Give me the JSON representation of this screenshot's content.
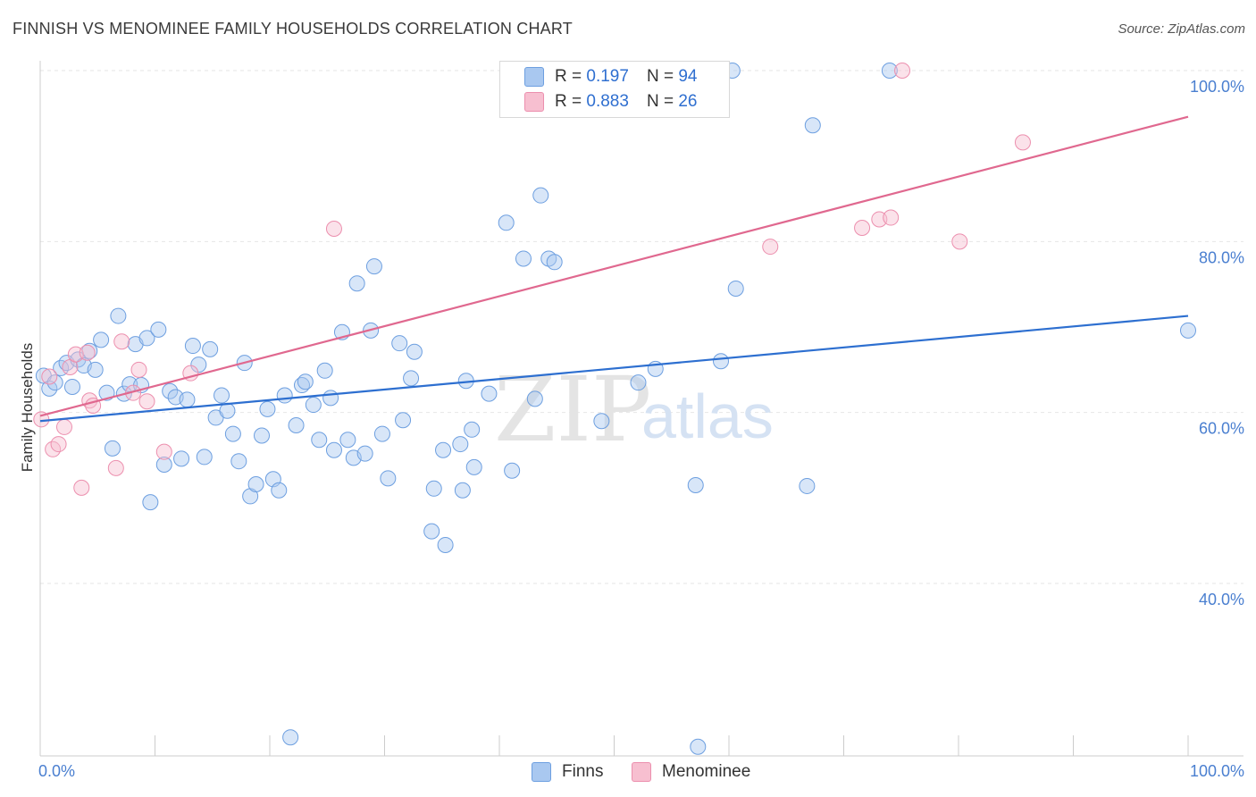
{
  "title": "FINNISH VS MENOMINEE FAMILY HOUSEHOLDS CORRELATION CHART",
  "source": "Source: ZipAtlas.com",
  "watermark": {
    "zip": "ZIP",
    "atlas": "atlas"
  },
  "legend": {
    "finns": {
      "r_label": "R = ",
      "r_value": "0.197",
      "n_label": "N = ",
      "n_value": "94"
    },
    "menominee": {
      "r_label": "R = ",
      "r_value": "0.883",
      "n_label": "N = ",
      "n_value": "26"
    }
  },
  "colors": {
    "finns_fill": "#a9c8f0",
    "finns_stroke": "#6d9fe0",
    "finns_line": "#2d6fd0",
    "menominee_fill": "#f7bfd0",
    "menominee_stroke": "#ec8fae",
    "menominee_line": "#e0688f",
    "grid": "#e6e6e6",
    "axis": "#cccccc",
    "tick_text": "#4a7fd0"
  },
  "chart_data": {
    "type": "scatter",
    "title": "FINNISH VS MENOMINEE FAMILY HOUSEHOLDS CORRELATION CHART",
    "xlabel": "",
    "ylabel": "Family Households",
    "xlim": [
      0,
      100
    ],
    "ylim": [
      20,
      104
    ],
    "x_tick_labels": [
      "0.0%",
      "100.0%"
    ],
    "y_ticks": [
      40,
      60,
      80,
      100
    ],
    "y_tick_labels": [
      "40.0%",
      "60.0%",
      "80.0%",
      "100.0%"
    ],
    "series": [
      {
        "name": "Finns",
        "r": 0.197,
        "n": 94,
        "trend": {
          "x": [
            0,
            100
          ],
          "y": [
            59.0,
            71.3
          ]
        },
        "points": [
          [
            0.3,
            64.3
          ],
          [
            0.8,
            62.8
          ],
          [
            1.3,
            63.5
          ],
          [
            1.8,
            65.2
          ],
          [
            2.3,
            65.8
          ],
          [
            2.8,
            63.0
          ],
          [
            3.3,
            66.2
          ],
          [
            3.8,
            65.5
          ],
          [
            4.3,
            67.2
          ],
          [
            4.8,
            65.0
          ],
          [
            5.3,
            68.5
          ],
          [
            5.8,
            62.3
          ],
          [
            6.3,
            55.8
          ],
          [
            6.8,
            71.3
          ],
          [
            7.3,
            62.2
          ],
          [
            7.8,
            63.3
          ],
          [
            8.3,
            68.0
          ],
          [
            8.8,
            63.2
          ],
          [
            9.3,
            68.7
          ],
          [
            9.6,
            49.5
          ],
          [
            10.3,
            69.7
          ],
          [
            10.8,
            53.9
          ],
          [
            11.3,
            62.5
          ],
          [
            11.8,
            61.8
          ],
          [
            12.3,
            54.6
          ],
          [
            12.8,
            61.5
          ],
          [
            13.3,
            67.8
          ],
          [
            13.8,
            65.6
          ],
          [
            14.3,
            54.8
          ],
          [
            14.8,
            67.4
          ],
          [
            15.3,
            59.4
          ],
          [
            15.8,
            62.0
          ],
          [
            16.3,
            60.2
          ],
          [
            16.8,
            57.5
          ],
          [
            17.3,
            54.3
          ],
          [
            17.8,
            65.8
          ],
          [
            18.3,
            50.2
          ],
          [
            18.8,
            51.6
          ],
          [
            19.3,
            57.3
          ],
          [
            19.8,
            60.4
          ],
          [
            20.3,
            52.2
          ],
          [
            20.8,
            50.9
          ],
          [
            21.3,
            62.0
          ],
          [
            21.8,
            22.0
          ],
          [
            22.3,
            58.5
          ],
          [
            22.8,
            63.2
          ],
          [
            23.1,
            63.6
          ],
          [
            23.8,
            60.9
          ],
          [
            24.3,
            56.8
          ],
          [
            24.8,
            64.9
          ],
          [
            25.3,
            61.7
          ],
          [
            25.6,
            55.6
          ],
          [
            26.3,
            69.4
          ],
          [
            26.8,
            56.8
          ],
          [
            27.3,
            54.7
          ],
          [
            27.6,
            75.1
          ],
          [
            28.3,
            55.2
          ],
          [
            28.8,
            69.6
          ],
          [
            29.1,
            77.1
          ],
          [
            29.8,
            57.5
          ],
          [
            30.3,
            52.3
          ],
          [
            31.3,
            68.1
          ],
          [
            31.6,
            59.1
          ],
          [
            32.3,
            64.0
          ],
          [
            32.6,
            67.1
          ],
          [
            34.1,
            46.1
          ],
          [
            34.3,
            51.1
          ],
          [
            35.1,
            55.6
          ],
          [
            35.3,
            44.5
          ],
          [
            36.6,
            56.3
          ],
          [
            36.8,
            50.9
          ],
          [
            37.1,
            63.7
          ],
          [
            37.6,
            58.0
          ],
          [
            37.8,
            53.6
          ],
          [
            39.1,
            62.2
          ],
          [
            40.6,
            82.2
          ],
          [
            41.1,
            53.2
          ],
          [
            42.1,
            78.0
          ],
          [
            43.1,
            61.6
          ],
          [
            43.6,
            85.4
          ],
          [
            44.3,
            78.0
          ],
          [
            44.8,
            77.6
          ],
          [
            48.9,
            59.0
          ],
          [
            52.1,
            63.5
          ],
          [
            53.6,
            65.1
          ],
          [
            57.1,
            51.5
          ],
          [
            57.3,
            20.9
          ],
          [
            59.3,
            66.0
          ],
          [
            60.3,
            100.0
          ],
          [
            60.6,
            74.5
          ],
          [
            66.8,
            51.4
          ],
          [
            67.3,
            93.6
          ],
          [
            74.0,
            100.0
          ],
          [
            100.0,
            69.6
          ]
        ]
      },
      {
        "name": "Menominee",
        "r": 0.883,
        "n": 26,
        "trend": {
          "x": [
            0,
            100
          ],
          "y": [
            59.6,
            94.6
          ]
        },
        "points": [
          [
            0.1,
            59.2
          ],
          [
            0.8,
            64.2
          ],
          [
            1.1,
            55.7
          ],
          [
            1.6,
            56.3
          ],
          [
            2.1,
            58.3
          ],
          [
            2.6,
            65.3
          ],
          [
            3.1,
            66.8
          ],
          [
            3.6,
            51.2
          ],
          [
            4.1,
            67.0
          ],
          [
            4.3,
            61.4
          ],
          [
            4.6,
            60.8
          ],
          [
            6.6,
            53.5
          ],
          [
            7.1,
            68.3
          ],
          [
            8.1,
            62.3
          ],
          [
            8.6,
            65.0
          ],
          [
            9.3,
            61.3
          ],
          [
            10.8,
            55.4
          ],
          [
            13.1,
            64.6
          ],
          [
            25.6,
            81.5
          ],
          [
            63.6,
            79.4
          ],
          [
            71.6,
            81.6
          ],
          [
            73.1,
            82.6
          ],
          [
            74.1,
            82.8
          ],
          [
            75.1,
            100.0
          ],
          [
            80.1,
            80.0
          ],
          [
            85.6,
            91.6
          ]
        ]
      }
    ]
  }
}
